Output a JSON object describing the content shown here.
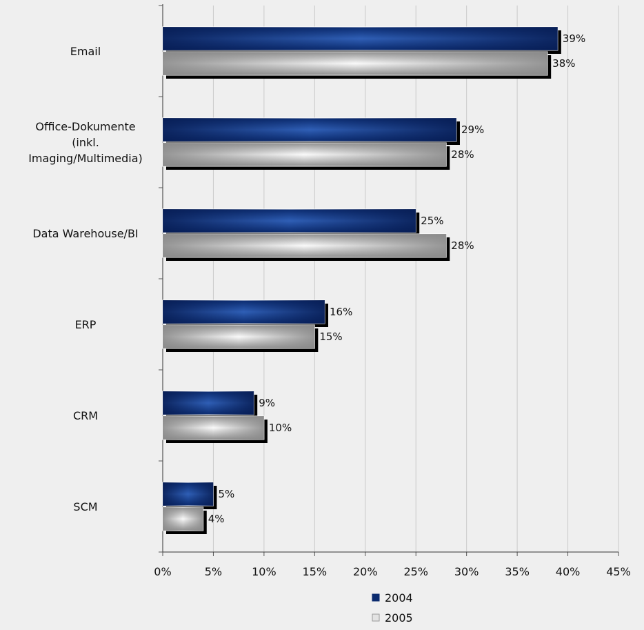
{
  "chart_data": {
    "type": "bar",
    "orientation": "horizontal",
    "categories": [
      [
        "Email"
      ],
      [
        "Office-Dokumente",
        "(inkl.",
        "Imaging/Multimedia)"
      ],
      [
        "Data Warehouse/BI"
      ],
      [
        "ERP"
      ],
      [
        "CRM"
      ],
      [
        "SCM"
      ]
    ],
    "series": [
      {
        "name": "2004",
        "values": [
          39,
          29,
          25,
          16,
          9,
          5
        ],
        "labels": [
          "39%",
          "29%",
          "25%",
          "16%",
          "9%",
          "5%"
        ],
        "color": "#0a2a6e"
      },
      {
        "name": "2005",
        "values": [
          38,
          28,
          28,
          15,
          10,
          4
        ],
        "labels": [
          "38%",
          "28%",
          "28%",
          "15%",
          "10%",
          "4%"
        ],
        "color": "#b5b5b5"
      }
    ],
    "xlim": [
      0,
      45
    ],
    "xticks": [
      0,
      5,
      10,
      15,
      20,
      25,
      30,
      35,
      40,
      45
    ],
    "xtick_labels": [
      "0%",
      "5%",
      "10%",
      "15%",
      "20%",
      "25%",
      "30%",
      "35%",
      "40%",
      "45%"
    ],
    "grid": "vertical",
    "legend_position": "bottom-center",
    "title": "",
    "xlabel": "",
    "ylabel": ""
  }
}
